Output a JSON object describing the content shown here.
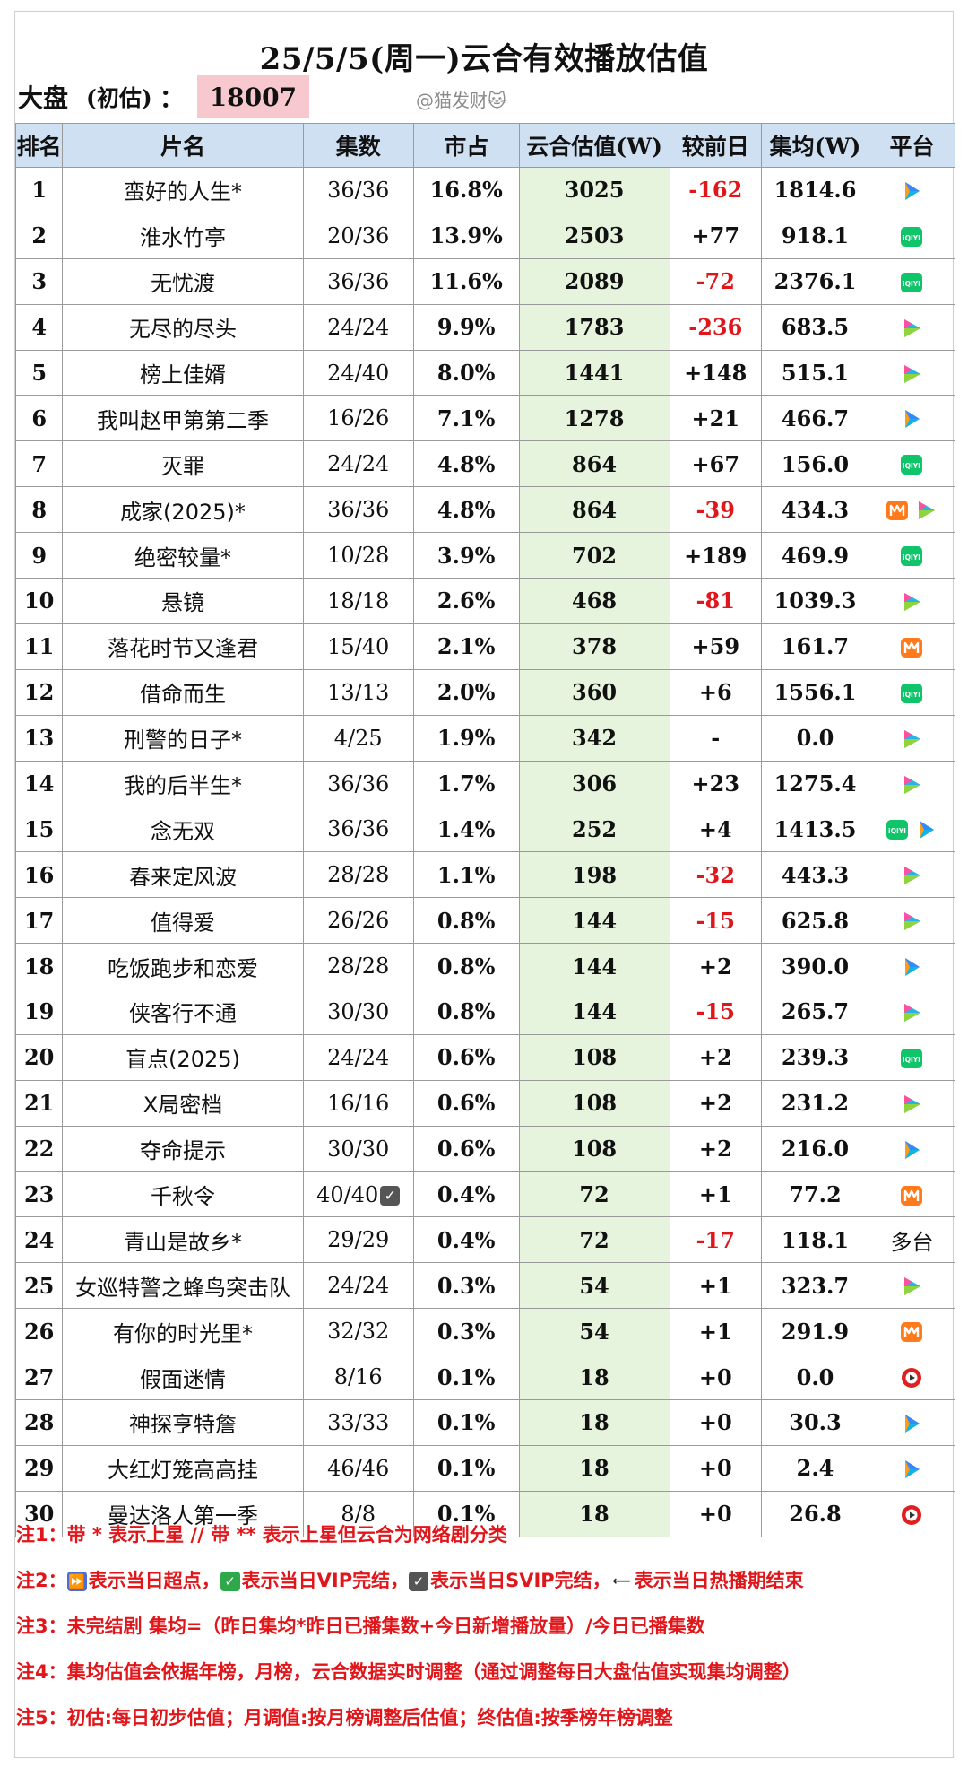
{
  "title": "25/5/5(周一)云合有效播放估值",
  "market": {
    "label": "大盘",
    "sub": "(初估)",
    "colon": "：",
    "value": "18007"
  },
  "watermark": "@猫发财🐱",
  "headers": [
    "排名",
    "片名",
    "集数",
    "市占",
    "云合估值(W)",
    "较前日",
    "集均(W)",
    "平台"
  ],
  "rows": [
    {
      "rank": "1",
      "title": "蛮好的人生*",
      "eps": "36/36",
      "share": "16.8%",
      "est": "3025",
      "change": "-162",
      "avg": "1814.6",
      "platforms": [
        "tencent-icon"
      ]
    },
    {
      "rank": "2",
      "title": "淮水竹亭",
      "eps": "20/36",
      "share": "13.9%",
      "est": "2503",
      "change": "+77",
      "avg": "918.1",
      "platforms": [
        "iqiyi-icon"
      ]
    },
    {
      "rank": "3",
      "title": "无忧渡",
      "eps": "36/36",
      "share": "11.6%",
      "est": "2089",
      "change": "-72",
      "avg": "2376.1",
      "platforms": [
        "iqiyi-icon"
      ]
    },
    {
      "rank": "4",
      "title": "无尽的尽头",
      "eps": "24/24",
      "share": "9.9%",
      "est": "1783",
      "change": "-236",
      "avg": "683.5",
      "platforms": [
        "youku-icon"
      ]
    },
    {
      "rank": "5",
      "title": "榜上佳婿",
      "eps": "24/40",
      "share": "8.0%",
      "est": "1441",
      "change": "+148",
      "avg": "515.1",
      "platforms": [
        "youku-icon"
      ]
    },
    {
      "rank": "6",
      "title": "我叫赵甲第第二季",
      "eps": "16/26",
      "share": "7.1%",
      "est": "1278",
      "change": "+21",
      "avg": "466.7",
      "platforms": [
        "tencent-icon"
      ]
    },
    {
      "rank": "7",
      "title": "灭罪",
      "eps": "24/24",
      "share": "4.8%",
      "est": "864",
      "change": "+67",
      "avg": "156.0",
      "platforms": [
        "iqiyi-icon"
      ]
    },
    {
      "rank": "8",
      "title": "成家(2025)*",
      "eps": "36/36",
      "share": "4.8%",
      "est": "864",
      "change": "-39",
      "avg": "434.3",
      "platforms": [
        "mango-icon",
        "youku-icon"
      ]
    },
    {
      "rank": "9",
      "title": "绝密较量*",
      "eps": "10/28",
      "share": "3.9%",
      "est": "702",
      "change": "+189",
      "avg": "469.9",
      "platforms": [
        "iqiyi-icon"
      ]
    },
    {
      "rank": "10",
      "title": "悬镜",
      "eps": "18/18",
      "share": "2.6%",
      "est": "468",
      "change": "-81",
      "avg": "1039.3",
      "platforms": [
        "youku-icon"
      ]
    },
    {
      "rank": "11",
      "title": "落花时节又逢君",
      "eps": "15/40",
      "share": "2.1%",
      "est": "378",
      "change": "+59",
      "avg": "161.7",
      "platforms": [
        "mango-icon"
      ]
    },
    {
      "rank": "12",
      "title": "借命而生",
      "eps": "13/13",
      "share": "2.0%",
      "est": "360",
      "change": "+6",
      "avg": "1556.1",
      "platforms": [
        "iqiyi-icon"
      ]
    },
    {
      "rank": "13",
      "title": "刑警的日子*",
      "eps": "4/25",
      "share": "1.9%",
      "est": "342",
      "change": "-",
      "avg": "0.0",
      "platforms": [
        "youku-icon"
      ]
    },
    {
      "rank": "14",
      "title": "我的后半生*",
      "eps": "36/36",
      "share": "1.7%",
      "est": "306",
      "change": "+23",
      "avg": "1275.4",
      "platforms": [
        "youku-icon"
      ]
    },
    {
      "rank": "15",
      "title": "念无双",
      "eps": "36/36",
      "share": "1.4%",
      "est": "252",
      "change": "+4",
      "avg": "1413.5",
      "platforms": [
        "iqiyi-icon",
        "tencent-icon"
      ]
    },
    {
      "rank": "16",
      "title": "春来定风波",
      "eps": "28/28",
      "share": "1.1%",
      "est": "198",
      "change": "-32",
      "avg": "443.3",
      "platforms": [
        "youku-icon"
      ]
    },
    {
      "rank": "17",
      "title": "值得爱",
      "eps": "26/26",
      "share": "0.8%",
      "est": "144",
      "change": "-15",
      "avg": "625.8",
      "platforms": [
        "youku-icon"
      ]
    },
    {
      "rank": "18",
      "title": "吃饭跑步和恋爱",
      "eps": "28/28",
      "share": "0.8%",
      "est": "144",
      "change": "+2",
      "avg": "390.0",
      "platforms": [
        "tencent-icon"
      ]
    },
    {
      "rank": "19",
      "title": "侠客行不通",
      "eps": "30/30",
      "share": "0.8%",
      "est": "144",
      "change": "-15",
      "avg": "265.7",
      "platforms": [
        "youku-icon"
      ]
    },
    {
      "rank": "20",
      "title": "盲点(2025)",
      "eps": "24/24",
      "share": "0.6%",
      "est": "108",
      "change": "+2",
      "avg": "239.3",
      "platforms": [
        "iqiyi-icon"
      ]
    },
    {
      "rank": "21",
      "title": "X局密档",
      "eps": "16/16",
      "share": "0.6%",
      "est": "108",
      "change": "+2",
      "avg": "231.2",
      "platforms": [
        "youku-icon"
      ]
    },
    {
      "rank": "22",
      "title": "夺命提示",
      "eps": "30/30",
      "share": "0.6%",
      "est": "108",
      "change": "+2",
      "avg": "216.0",
      "platforms": [
        "tencent-icon"
      ]
    },
    {
      "rank": "23",
      "title": "千秋令",
      "eps": "40/40",
      "eps_check": true,
      "share": "0.4%",
      "est": "72",
      "change": "+1",
      "avg": "77.2",
      "platforms": [
        "mango-icon"
      ]
    },
    {
      "rank": "24",
      "title": "青山是故乡*",
      "eps": "29/29",
      "share": "0.4%",
      "est": "72",
      "change": "-17",
      "avg": "118.1",
      "platforms": [],
      "platform_text": "多台"
    },
    {
      "rank": "25",
      "title": "女巡特警之蜂鸟突击队",
      "eps": "24/24",
      "share": "0.3%",
      "est": "54",
      "change": "+1",
      "avg": "323.7",
      "platforms": [
        "youku-icon"
      ]
    },
    {
      "rank": "26",
      "title": "有你的时光里*",
      "eps": "32/32",
      "share": "0.3%",
      "est": "54",
      "change": "+1",
      "avg": "291.9",
      "platforms": [
        "mango-icon"
      ]
    },
    {
      "rank": "27",
      "title": "假面迷情",
      "eps": "8/16",
      "share": "0.1%",
      "est": "18",
      "change": "+0",
      "avg": "0.0",
      "platforms": [
        "cctv-icon"
      ]
    },
    {
      "rank": "28",
      "title": "神探亨特詹",
      "eps": "33/33",
      "share": "0.1%",
      "est": "18",
      "change": "+0",
      "avg": "30.3",
      "platforms": [
        "tencent-icon"
      ]
    },
    {
      "rank": "29",
      "title": "大红灯笼高高挂",
      "eps": "46/46",
      "share": "0.1%",
      "est": "18",
      "change": "+0",
      "avg": "2.4",
      "platforms": [
        "tencent-icon"
      ]
    },
    {
      "rank": "30",
      "title": "曼达洛人第一季",
      "eps": "8/8",
      "share": "0.1%",
      "est": "18",
      "change": "+0",
      "avg": "26.8",
      "platforms": [
        "cctv-icon"
      ]
    }
  ],
  "colors": {
    "header_bg": "#cfe0f2",
    "estimate_bg": "#e6f3dd",
    "negative": "#e0161b",
    "market_highlight": "#f7c9cf",
    "tencent": "#2f8cff",
    "iqiyi": "#10c46a",
    "youku": "#27b3e6",
    "mango": "#ff7a1a",
    "cctv": "#e02020"
  },
  "notes": {
    "n1": "注1：带 * 表示上星 // 带 ** 表示上星但云合为网络剧分类",
    "n2": {
      "prefix": "注2：",
      "a": "表示当日超点，",
      "b": "表示当日VIP完结，",
      "c": "表示当日SVIP完结，",
      "d": "表示当日热播期结束",
      "icons": [
        "fast-forward-icon",
        "vip-check-icon",
        "svip-check-icon",
        "end-icon"
      ]
    },
    "n3": "注3：未完结剧 集均=（昨日集均*昨日已播集数+今日新增播放量）/今日已播集数",
    "n4": "注4：集均估值会依据年榜，月榜，云合数据实时调整（通过调整每日大盘估值实现集均调整）",
    "n5": "注5：初估:每日初步估值；月调值:按月榜调整后估值；终估值:按季榜年榜调整"
  }
}
